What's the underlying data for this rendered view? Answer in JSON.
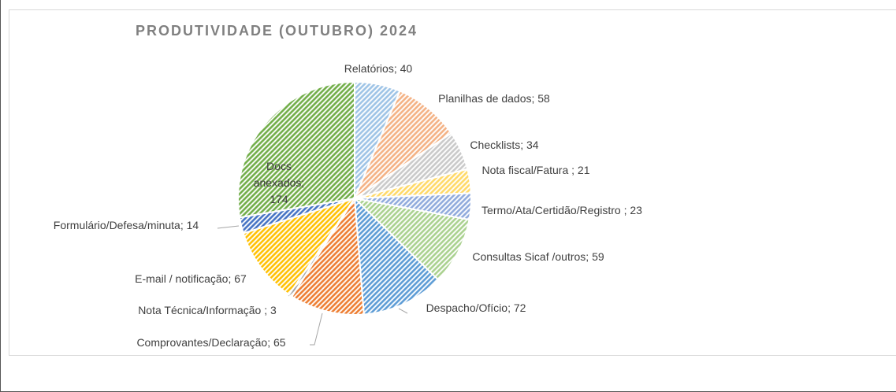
{
  "chart_data": {
    "type": "pie",
    "title": "PRODUTIVIDADE (OUTUBRO) 2024",
    "categories": [
      "Relatórios",
      "Planilhas de dados",
      "Checklists",
      "Nota fiscal/Fatura ",
      "Termo/Ata/Certidão/Registro ",
      "Consultas Sicaf /outros",
      "Despacho/Ofício",
      "Comprovantes/Declaração",
      "Nota Técnica/Informação ",
      "E-mail / notificação",
      "Formulário/Defesa/minuta",
      "Docs anexados"
    ],
    "values": [
      40,
      58,
      34,
      21,
      23,
      59,
      72,
      65,
      3,
      67,
      14,
      174
    ],
    "colors": [
      "#9dc3e6",
      "#f4b183",
      "#c9c9c9",
      "#ffd966",
      "#8faadc",
      "#a9d18e",
      "#5b9bd5",
      "#ed7d31",
      "#a5a5a5",
      "#ffc000",
      "#4472c4",
      "#70ad47"
    ],
    "label_separator": "; "
  }
}
